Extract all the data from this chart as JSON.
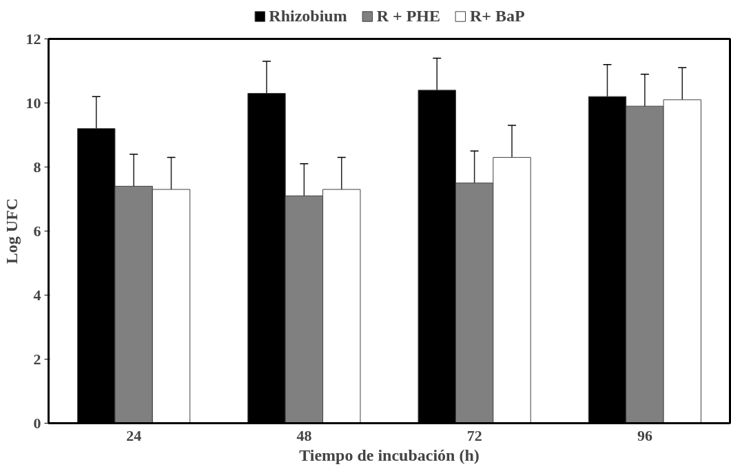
{
  "chart_data": {
    "type": "bar",
    "xlabel": "Tiempo de incubación (h)",
    "ylabel": "Log UFC",
    "categories": [
      "24",
      "48",
      "72",
      "96"
    ],
    "ylim": [
      0,
      12
    ],
    "yticks": [
      0,
      2,
      4,
      6,
      8,
      10,
      12
    ],
    "grid": false,
    "legend": "top",
    "series": [
      {
        "name": "Rhizobium",
        "color": "#000000",
        "values": [
          9.2,
          10.3,
          10.4,
          10.2
        ],
        "errors": [
          1.0,
          1.0,
          1.0,
          1.0
        ]
      },
      {
        "name": "R + PHE",
        "color": "#808080",
        "values": [
          7.4,
          7.1,
          7.5,
          9.9
        ],
        "errors": [
          1.0,
          1.0,
          1.0,
          1.0
        ]
      },
      {
        "name": "R+ BaP",
        "color": "#ffffff",
        "values": [
          7.3,
          7.3,
          8.3,
          10.1
        ],
        "errors": [
          1.0,
          1.0,
          1.0,
          1.0
        ]
      }
    ]
  }
}
